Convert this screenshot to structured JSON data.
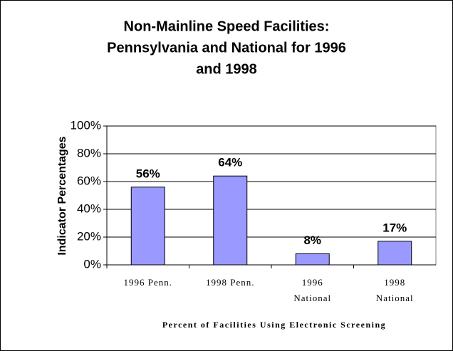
{
  "chart_data": {
    "type": "bar",
    "title_lines": [
      "Non-Mainline Speed Facilities:",
      "Pennsylvania and National for 1996",
      "and 1998"
    ],
    "y_label": "Indicator Percentages",
    "x_label": "Percent of Facilities Using Electronic Screening",
    "categories": [
      "1996 Penn.",
      "1998 Penn.",
      "1996 National",
      "1998 National"
    ],
    "values": [
      56,
      64,
      8,
      17
    ],
    "value_labels": [
      "56%",
      "64%",
      "8%",
      "17%"
    ],
    "color": "#9999ff",
    "ylim": [
      0,
      100
    ],
    "yticks": [
      {
        "value": 0,
        "label": "0%"
      },
      {
        "value": 20,
        "label": "20%"
      },
      {
        "value": 40,
        "label": "40%"
      },
      {
        "value": 60,
        "label": "60%"
      },
      {
        "value": 80,
        "label": "80%"
      },
      {
        "value": 100,
        "label": "100%"
      }
    ],
    "grid": true
  }
}
